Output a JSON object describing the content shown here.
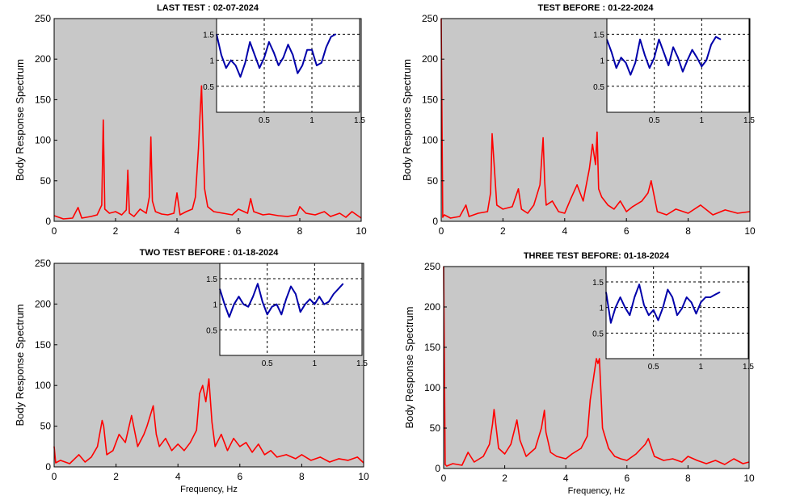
{
  "chart_data": [
    {
      "type": "line",
      "title": "LAST TEST : 02-07-2024",
      "xlabel": "",
      "ylabel": "Body Response Spectrum",
      "xlim": [
        0,
        10
      ],
      "ylim": [
        0,
        250
      ],
      "xticks": [
        0,
        2,
        4,
        6,
        8,
        10
      ],
      "yticks": [
        0,
        50,
        100,
        150,
        200,
        250
      ],
      "background": "#c8c8c8",
      "line_color": "#ff0000",
      "series": [
        {
          "x": [
            0,
            0.3,
            0.6,
            0.78,
            0.9,
            1.2,
            1.4,
            1.55,
            1.6,
            1.65,
            1.8,
            2.0,
            2.2,
            2.35,
            2.4,
            2.45,
            2.6,
            2.8,
            3.0,
            3.1,
            3.15,
            3.2,
            3.3,
            3.5,
            3.7,
            3.9,
            4.0,
            4.1,
            4.3,
            4.5,
            4.6,
            4.7,
            4.75,
            4.8,
            4.85,
            4.9,
            5.0,
            5.2,
            5.5,
            5.8,
            6.0,
            6.3,
            6.4,
            6.5,
            6.8,
            7.0,
            7.3,
            7.6,
            7.9,
            8.0,
            8.2,
            8.5,
            8.8,
            9.0,
            9.3,
            9.5,
            9.7,
            10.0
          ],
          "y": [
            7,
            3,
            4,
            17,
            4,
            6,
            8,
            20,
            125,
            15,
            10,
            12,
            8,
            14,
            63,
            10,
            6,
            15,
            10,
            30,
            104,
            25,
            12,
            9,
            8,
            10,
            35,
            8,
            12,
            15,
            30,
            90,
            130,
            167,
            100,
            40,
            18,
            12,
            10,
            8,
            15,
            10,
            28,
            12,
            8,
            9,
            7,
            6,
            8,
            18,
            10,
            8,
            12,
            6,
            10,
            5,
            12,
            4
          ]
        }
      ],
      "inset": {
        "type": "line",
        "xlim": [
          0,
          1.5
        ],
        "ylim": [
          0,
          1.8
        ],
        "xticks": [
          0.5,
          1,
          1.5
        ],
        "yticks": [
          0.5,
          1,
          1.5
        ],
        "line_color": "#0000aa",
        "x": [
          0,
          0.05,
          0.1,
          0.15,
          0.2,
          0.25,
          0.3,
          0.35,
          0.4,
          0.45,
          0.5,
          0.55,
          0.6,
          0.65,
          0.7,
          0.75,
          0.8,
          0.85,
          0.9,
          0.95,
          1.0,
          1.05,
          1.1,
          1.15,
          1.2,
          1.25
        ],
        "y": [
          1.5,
          1.1,
          0.85,
          1.0,
          0.9,
          0.68,
          0.95,
          1.35,
          1.1,
          0.85,
          1.05,
          1.35,
          1.15,
          0.9,
          1.05,
          1.3,
          1.1,
          0.75,
          0.9,
          1.2,
          1.2,
          0.9,
          0.95,
          1.25,
          1.45,
          1.5
        ]
      }
    },
    {
      "type": "line",
      "title": "TEST BEFORE : 01-22-2024",
      "xlabel": "",
      "ylabel": "Body Response Spectrum",
      "xlim": [
        0,
        10
      ],
      "ylim": [
        0,
        250
      ],
      "xticks": [
        0,
        2,
        4,
        6,
        8,
        10
      ],
      "yticks": [
        0,
        50,
        100,
        150,
        200,
        250
      ],
      "background": "#c8c8c8",
      "line_color": "#ff0000",
      "series": [
        {
          "x": [
            0,
            0.05,
            0.1,
            0.3,
            0.6,
            0.8,
            0.9,
            1.2,
            1.5,
            1.6,
            1.65,
            1.8,
            2.0,
            2.3,
            2.5,
            2.6,
            2.8,
            3.0,
            3.2,
            3.3,
            3.35,
            3.4,
            3.6,
            3.8,
            4.0,
            4.2,
            4.4,
            4.6,
            4.8,
            4.9,
            5.0,
            5.05,
            5.1,
            5.2,
            5.4,
            5.6,
            5.8,
            6.0,
            6.2,
            6.5,
            6.7,
            6.8,
            7.0,
            7.3,
            7.6,
            8.0,
            8.4,
            8.8,
            9.2,
            9.6,
            10.0
          ],
          "y": [
            250,
            5,
            8,
            4,
            6,
            20,
            6,
            10,
            12,
            35,
            108,
            20,
            15,
            18,
            40,
            15,
            10,
            20,
            45,
            103,
            50,
            20,
            25,
            12,
            10,
            28,
            45,
            25,
            65,
            95,
            70,
            110,
            40,
            30,
            20,
            15,
            25,
            12,
            18,
            25,
            35,
            50,
            12,
            8,
            15,
            10,
            20,
            8,
            14,
            10,
            12
          ]
        }
      ],
      "inset": {
        "type": "line",
        "xlim": [
          0,
          1.5
        ],
        "ylim": [
          0,
          1.8
        ],
        "xticks": [
          0.5,
          1,
          1.5
        ],
        "yticks": [
          0.5,
          1,
          1.5
        ],
        "line_color": "#0000aa",
        "x": [
          0,
          0.05,
          0.1,
          0.15,
          0.2,
          0.25,
          0.3,
          0.35,
          0.4,
          0.45,
          0.5,
          0.55,
          0.6,
          0.65,
          0.7,
          0.75,
          0.8,
          0.85,
          0.9,
          0.95,
          1.0,
          1.05,
          1.1,
          1.15,
          1.2
        ],
        "y": [
          1.4,
          1.15,
          0.85,
          1.05,
          0.95,
          0.72,
          0.95,
          1.4,
          1.1,
          0.85,
          1.05,
          1.4,
          1.15,
          0.9,
          1.25,
          1.05,
          0.78,
          1.0,
          1.2,
          1.05,
          0.88,
          1.0,
          1.3,
          1.45,
          1.4
        ]
      }
    },
    {
      "type": "line",
      "title": "TWO TEST BEFORE : 01-18-2024",
      "xlabel": "Frequency, Hz",
      "ylabel": "Body Response Spectrum",
      "xlim": [
        0,
        10
      ],
      "ylim": [
        0,
        250
      ],
      "xticks": [
        0,
        2,
        4,
        6,
        8,
        10
      ],
      "yticks": [
        0,
        50,
        100,
        150,
        200,
        250
      ],
      "background": "#c8c8c8",
      "line_color": "#ff0000",
      "series": [
        {
          "x": [
            0,
            0.05,
            0.2,
            0.5,
            0.8,
            1.0,
            1.2,
            1.4,
            1.55,
            1.6,
            1.7,
            1.9,
            2.1,
            2.3,
            2.5,
            2.7,
            2.9,
            3.0,
            3.2,
            3.3,
            3.4,
            3.6,
            3.8,
            4.0,
            4.2,
            4.4,
            4.6,
            4.7,
            4.8,
            4.9,
            5.0,
            5.1,
            5.2,
            5.4,
            5.6,
            5.8,
            6.0,
            6.2,
            6.4,
            6.6,
            6.8,
            7.0,
            7.2,
            7.5,
            7.8,
            8.0,
            8.3,
            8.6,
            8.9,
            9.2,
            9.5,
            9.8,
            10.0
          ],
          "y": [
            25,
            5,
            8,
            4,
            15,
            6,
            12,
            25,
            57,
            50,
            15,
            20,
            40,
            30,
            63,
            25,
            40,
            50,
            75,
            40,
            25,
            35,
            20,
            28,
            20,
            30,
            45,
            90,
            100,
            80,
            108,
            55,
            25,
            40,
            20,
            35,
            25,
            30,
            18,
            28,
            15,
            20,
            12,
            15,
            10,
            15,
            8,
            12,
            6,
            10,
            8,
            12,
            5
          ]
        }
      ],
      "inset": {
        "type": "line",
        "xlim": [
          0,
          1.5
        ],
        "ylim": [
          0,
          1.8
        ],
        "xticks": [
          0.5,
          1,
          1.5
        ],
        "yticks": [
          0.5,
          1,
          1.5
        ],
        "line_color": "#0000aa",
        "x": [
          0,
          0.05,
          0.1,
          0.15,
          0.2,
          0.25,
          0.3,
          0.35,
          0.4,
          0.45,
          0.5,
          0.55,
          0.6,
          0.65,
          0.7,
          0.75,
          0.8,
          0.85,
          0.9,
          0.95,
          1.0,
          1.05,
          1.1,
          1.15,
          1.2,
          1.25,
          1.3
        ],
        "y": [
          1.3,
          1.0,
          0.75,
          1.0,
          1.15,
          1.0,
          0.95,
          1.15,
          1.4,
          1.05,
          0.8,
          0.95,
          1.0,
          0.8,
          1.1,
          1.35,
          1.2,
          0.85,
          1.0,
          1.1,
          1.0,
          1.15,
          1.0,
          1.05,
          1.2,
          1.3,
          1.4
        ]
      }
    },
    {
      "type": "line",
      "title": "THREE TEST BEFORE:   01-18-2024",
      "xlabel": "Frequency, Hz",
      "ylabel": "Body Response Spectrum",
      "xlim": [
        0,
        10
      ],
      "ylim": [
        0,
        250
      ],
      "xticks": [
        0,
        2,
        4,
        6,
        8,
        10
      ],
      "yticks": [
        0,
        50,
        100,
        150,
        200,
        250
      ],
      "background": "#c8c8c8",
      "line_color": "#ff0000",
      "series": [
        {
          "x": [
            0,
            0.05,
            0.1,
            0.3,
            0.6,
            0.8,
            1.0,
            1.3,
            1.5,
            1.6,
            1.65,
            1.8,
            2.0,
            2.2,
            2.4,
            2.5,
            2.7,
            3.0,
            3.2,
            3.3,
            3.35,
            3.5,
            3.7,
            4.0,
            4.2,
            4.5,
            4.7,
            4.8,
            4.9,
            5.0,
            5.05,
            5.1,
            5.2,
            5.4,
            5.6,
            5.8,
            6.0,
            6.3,
            6.6,
            6.7,
            6.9,
            7.2,
            7.5,
            7.8,
            8.0,
            8.3,
            8.6,
            8.9,
            9.2,
            9.5,
            9.8,
            10.0
          ],
          "y": [
            250,
            5,
            3,
            6,
            4,
            20,
            8,
            15,
            30,
            55,
            73,
            25,
            18,
            30,
            60,
            35,
            15,
            25,
            50,
            72,
            45,
            20,
            15,
            12,
            18,
            25,
            40,
            85,
            110,
            136,
            130,
            136,
            50,
            25,
            15,
            12,
            10,
            18,
            30,
            37,
            15,
            10,
            12,
            8,
            15,
            10,
            6,
            10,
            5,
            12,
            6,
            8
          ]
        }
      ],
      "inset": {
        "type": "line",
        "xlim": [
          0,
          1.5
        ],
        "ylim": [
          0,
          1.8
        ],
        "xticks": [
          0.5,
          1,
          1.5
        ],
        "yticks": [
          0.5,
          1,
          1.5
        ],
        "line_color": "#0000aa",
        "x": [
          0,
          0.05,
          0.1,
          0.15,
          0.2,
          0.25,
          0.3,
          0.35,
          0.4,
          0.45,
          0.5,
          0.55,
          0.6,
          0.65,
          0.7,
          0.75,
          0.8,
          0.85,
          0.9,
          0.95,
          1.0,
          1.05,
          1.1,
          1.15,
          1.2
        ],
        "y": [
          1.3,
          0.7,
          1.0,
          1.2,
          1.0,
          0.85,
          1.2,
          1.45,
          1.05,
          0.85,
          0.95,
          0.75,
          1.0,
          1.35,
          1.2,
          0.85,
          0.98,
          1.2,
          1.1,
          0.88,
          1.1,
          1.2,
          1.2,
          1.25,
          1.3
        ]
      }
    }
  ]
}
